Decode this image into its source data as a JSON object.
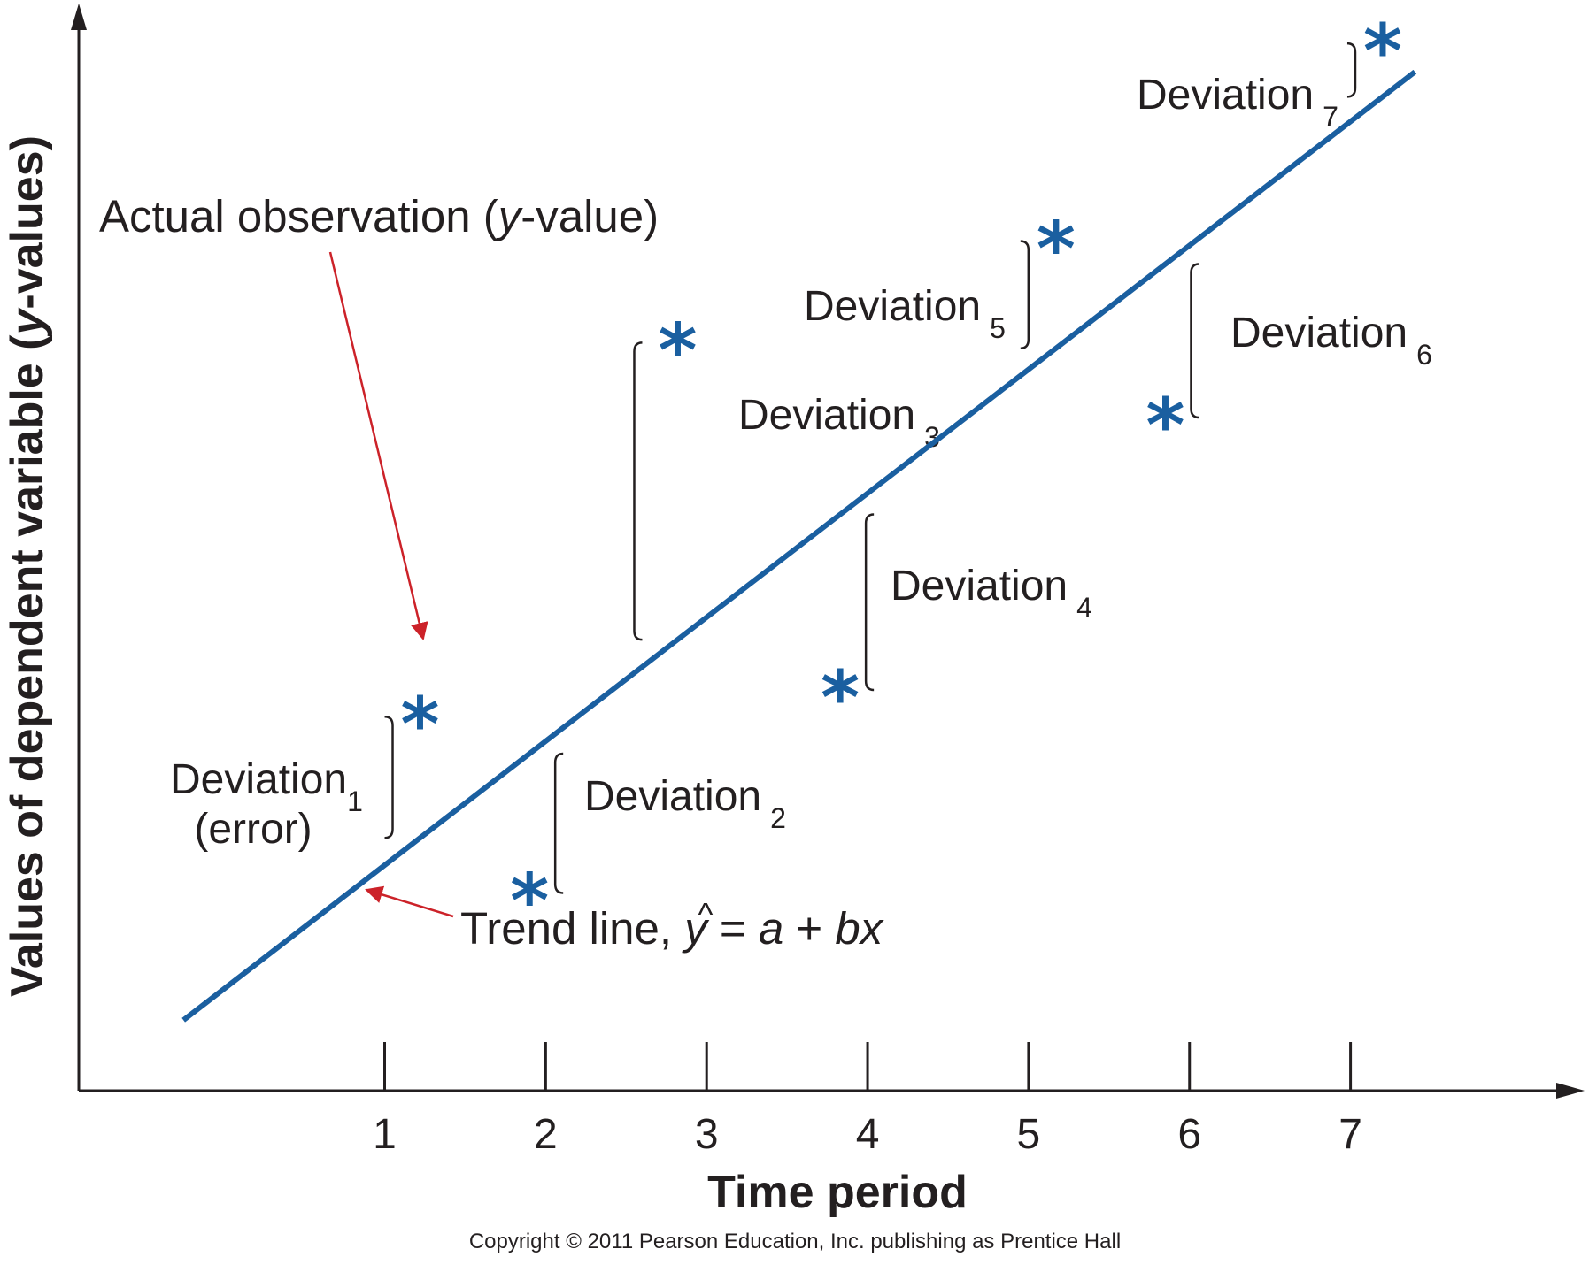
{
  "chart_data": {
    "type": "scatter",
    "xlabel": "Time period",
    "ylabel": "Values of dependent variable (y-values)",
    "ylabel_parts": [
      "Values of dependent variable (",
      "y",
      "-values)"
    ],
    "x_ticks": [
      "1",
      "2",
      "3",
      "4",
      "5",
      "6",
      "7"
    ],
    "xlim": [
      -0.9,
      8.3
    ],
    "ylim": [
      0,
      10
    ],
    "grid": false,
    "trend_line": {
      "x_start": -0.25,
      "x_end": 7.4,
      "intercept": 0.95,
      "slope": 1.16
    },
    "points": [
      {
        "x": 1.22,
        "y": 3.5,
        "deviation_label": "Deviation",
        "deviation_sub": "1",
        "side": "above"
      },
      {
        "x": 1.9,
        "y": 1.85,
        "deviation_label": "Deviation",
        "deviation_sub": "2",
        "side": "below"
      },
      {
        "x": 2.82,
        "y": 7.0,
        "deviation_label": "Deviation",
        "deviation_sub": "3",
        "side": "above"
      },
      {
        "x": 3.83,
        "y": 3.75,
        "deviation_label": "Deviation",
        "deviation_sub": "4",
        "side": "below"
      },
      {
        "x": 5.17,
        "y": 7.95,
        "deviation_label": "Deviation",
        "deviation_sub": "5",
        "side": "above"
      },
      {
        "x": 5.85,
        "y": 6.3,
        "deviation_label": "Deviation",
        "deviation_sub": "6",
        "side": "below"
      },
      {
        "x": 7.2,
        "y": 9.8,
        "deviation_label": "Deviation",
        "deviation_sub": "7",
        "side": "above"
      }
    ],
    "annotations": {
      "actual_observation": {
        "text_before": "Actual observation (",
        "text_italic": "y",
        "text_after": "-value)"
      },
      "deviation_1_note": "(error)",
      "trend_line": {
        "text": "Trend line, ",
        "yhat": "y",
        "hat": "^",
        "equals": " = ",
        "a": "a",
        "plus": " + ",
        "bx": "bx"
      }
    },
    "copyright": "Copyright © 2011 Pearson Education, Inc. publishing as Prentice Hall",
    "colors": {
      "trend_line": "#1a5fa0",
      "points": "#1a5fa0",
      "annotation_arrow": "#cc2229",
      "axes": "#231f20",
      "text": "#231f20"
    }
  }
}
